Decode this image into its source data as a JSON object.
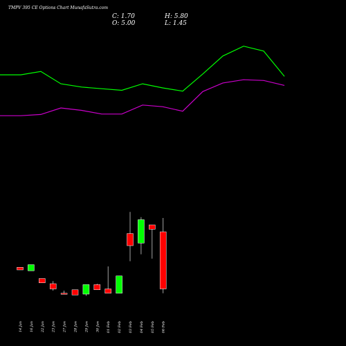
{
  "header": {
    "title": "TMPV 395 CE Options  Chart MunafaSutra.com",
    "close": "C: 1.70",
    "open": "O: 5.00",
    "high": "H: 5.80",
    "low": "L: 1.45"
  },
  "colors": {
    "background": "#000000",
    "up_candle": "#00ff00",
    "down_candle": "#ff0000",
    "upper_band": "#00ff00",
    "lower_band": "#cc00cc"
  },
  "chart_data": {
    "type": "candlestick",
    "categories": [
      "14 Jan",
      "16 Jan",
      "22 Jan",
      "23 Jan",
      "27 Jan",
      "28 Jan",
      "29 Jan",
      "30 Jan",
      "01 Feb",
      "02 Feb",
      "03 Feb",
      "04 Feb",
      "05 Feb",
      "06 Feb"
    ],
    "ohlc": [
      {
        "open": 2.95,
        "high": 2.95,
        "low": 2.8,
        "close": 2.8
      },
      {
        "open": 2.75,
        "high": 3.1,
        "low": 2.75,
        "close": 3.1
      },
      {
        "open": 2.3,
        "high": 2.3,
        "low": 2.05,
        "close": 2.05
      },
      {
        "open": 2.0,
        "high": 2.15,
        "low": 1.6,
        "close": 1.7
      },
      {
        "open": 1.45,
        "high": 1.6,
        "low": 1.4,
        "close": 1.4
      },
      {
        "open": 1.65,
        "high": 1.65,
        "low": 1.35,
        "close": 1.35
      },
      {
        "open": 1.4,
        "high": 1.95,
        "low": 1.3,
        "close": 1.95
      },
      {
        "open": 1.95,
        "high": 2.0,
        "low": 1.65,
        "close": 1.65
      },
      {
        "open": 1.7,
        "high": 3.0,
        "low": 1.45,
        "close": 1.45
      },
      {
        "open": 1.45,
        "high": 2.45,
        "low": 1.45,
        "close": 2.45
      },
      {
        "open": 4.9,
        "high": 6.15,
        "low": 3.3,
        "close": 4.2
      },
      {
        "open": 4.35,
        "high": 5.85,
        "low": 3.7,
        "close": 5.7
      },
      {
        "open": 5.4,
        "high": 5.4,
        "low": 3.45,
        "close": 5.15
      },
      {
        "open": 5.0,
        "high": 5.8,
        "low": 1.45,
        "close": 1.7
      }
    ],
    "upper_band": [
      14.0,
      14.0,
      14.4,
      12.9,
      12.5,
      12.3,
      12.1,
      12.9,
      12.4,
      12.0,
      14.1,
      16.3,
      17.5,
      16.9,
      13.8
    ],
    "lower_band": [
      9.0,
      9.0,
      9.15,
      9.95,
      9.65,
      9.2,
      9.2,
      10.3,
      10.1,
      9.55,
      11.95,
      13.0,
      13.4,
      13.3,
      12.7
    ],
    "band_ylim": [
      2.0,
      20.6
    ],
    "candle_ylim": [
      0.0,
      8.8
    ]
  }
}
